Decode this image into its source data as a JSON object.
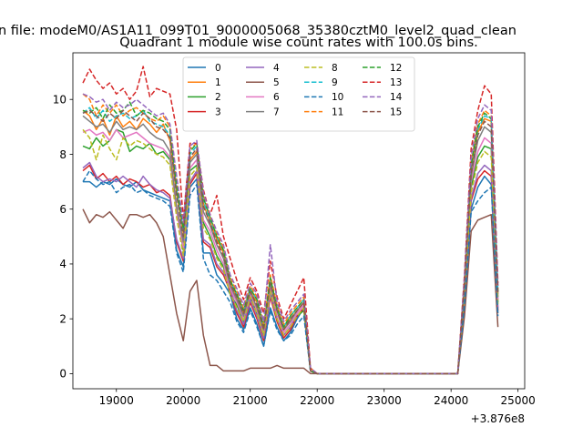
{
  "header": {
    "suptitle": "n file: modeM0/AS1A11_099T01_9000005068_35380cztM0_level2_quad_clean"
  },
  "chart_data": {
    "type": "line",
    "title": "Quadrant 1 module wise count rates with 100.0s bins.",
    "xlabel": "",
    "ylabel": "",
    "x_offset_label": "+3.876e8",
    "xlim": [
      18350,
      25100
    ],
    "ylim": [
      -0.55,
      11.7
    ],
    "xticks": [
      19000,
      20000,
      21000,
      22000,
      23000,
      24000,
      25000
    ],
    "yticks": [
      0,
      2,
      4,
      6,
      8,
      10
    ],
    "x": [
      18500,
      18600,
      18700,
      18800,
      18900,
      19000,
      19100,
      19200,
      19300,
      19400,
      19500,
      19600,
      19700,
      19800,
      19900,
      20000,
      20100,
      20200,
      20300,
      20400,
      20500,
      20600,
      20700,
      20800,
      20900,
      21000,
      21100,
      21200,
      21300,
      21400,
      21500,
      21600,
      21700,
      21800,
      21900,
      22000,
      22100,
      22200,
      22300,
      22400,
      22500,
      22600,
      22700,
      22800,
      22900,
      23000,
      23100,
      23200,
      23300,
      23400,
      23500,
      23600,
      23700,
      23800,
      23900,
      24000,
      24100,
      24200,
      24300,
      24400,
      24500,
      24600,
      24700
    ],
    "legend": {
      "location": "upper-center",
      "columns": 4
    },
    "series": [
      {
        "name": "0",
        "color": "#1f77b4",
        "dash": "solid",
        "values": [
          7.0,
          7.0,
          6.8,
          7.0,
          6.9,
          7.1,
          6.9,
          6.8,
          7.0,
          6.7,
          6.6,
          6.5,
          6.4,
          6.3,
          4.5,
          3.9,
          6.8,
          7.1,
          4.4,
          4.4,
          3.6,
          3.3,
          2.9,
          2.0,
          1.6,
          2.4,
          1.8,
          1.0,
          2.4,
          1.7,
          1.2,
          1.5,
          2.0,
          2.4,
          0.1,
          0.0,
          0.0,
          0.0,
          0.0,
          0.0,
          0.0,
          0.0,
          0.0,
          0.0,
          0.0,
          0.0,
          0.0,
          0.0,
          0.0,
          0.0,
          0.0,
          0.0,
          0.0,
          0.0,
          0.0,
          0.0,
          0.0,
          2.6,
          6.0,
          6.8,
          7.2,
          6.9,
          2.2
        ]
      },
      {
        "name": "1",
        "color": "#ff7f0e",
        "dash": "solid",
        "values": [
          9.6,
          9.4,
          8.9,
          9.3,
          8.7,
          9.4,
          9.0,
          9.2,
          8.9,
          9.3,
          9.1,
          8.8,
          9.1,
          8.5,
          6.6,
          5.1,
          7.8,
          8.1,
          6.2,
          5.5,
          4.9,
          4.4,
          3.3,
          2.8,
          2.2,
          3.0,
          2.6,
          1.6,
          3.4,
          2.3,
          1.6,
          2.0,
          2.3,
          2.6,
          0.1,
          0.0,
          0.0,
          0.0,
          0.0,
          0.0,
          0.0,
          0.0,
          0.0,
          0.0,
          0.0,
          0.0,
          0.0,
          0.0,
          0.0,
          0.0,
          0.0,
          0.0,
          0.0,
          0.0,
          0.0,
          0.0,
          0.0,
          3.2,
          7.4,
          8.8,
          9.3,
          9.2,
          2.9
        ]
      },
      {
        "name": "2",
        "color": "#2ca02c",
        "dash": "solid",
        "values": [
          8.3,
          8.2,
          8.6,
          8.3,
          8.5,
          8.9,
          8.8,
          8.1,
          8.3,
          8.2,
          8.4,
          8.0,
          8.1,
          7.8,
          6.0,
          4.5,
          7.4,
          7.6,
          5.5,
          5.0,
          4.3,
          3.9,
          2.9,
          2.5,
          1.9,
          2.8,
          2.2,
          1.4,
          3.1,
          2.0,
          1.4,
          1.7,
          2.1,
          2.3,
          0.1,
          0.0,
          0.0,
          0.0,
          0.0,
          0.0,
          0.0,
          0.0,
          0.0,
          0.0,
          0.0,
          0.0,
          0.0,
          0.0,
          0.0,
          0.0,
          0.0,
          0.0,
          0.0,
          0.0,
          0.0,
          0.0,
          0.0,
          3.0,
          6.8,
          7.9,
          8.3,
          8.2,
          2.6
        ]
      },
      {
        "name": "3",
        "color": "#d62728",
        "dash": "solid",
        "values": [
          7.4,
          7.6,
          7.1,
          7.3,
          7.0,
          7.2,
          6.9,
          7.1,
          7.0,
          6.8,
          6.9,
          6.6,
          6.7,
          6.5,
          4.8,
          4.1,
          6.9,
          7.3,
          4.8,
          4.6,
          3.9,
          3.6,
          3.0,
          2.2,
          1.7,
          2.6,
          2.0,
          1.2,
          2.8,
          1.9,
          1.3,
          1.6,
          2.1,
          2.4,
          0.1,
          0.0,
          0.0,
          0.0,
          0.0,
          0.0,
          0.0,
          0.0,
          0.0,
          0.0,
          0.0,
          0.0,
          0.0,
          0.0,
          0.0,
          0.0,
          0.0,
          0.0,
          0.0,
          0.0,
          0.0,
          0.0,
          0.0,
          2.7,
          6.3,
          7.1,
          7.4,
          7.2,
          2.3
        ]
      },
      {
        "name": "4",
        "color": "#9467bd",
        "dash": "solid",
        "values": [
          7.5,
          7.7,
          7.2,
          7.0,
          7.1,
          7.0,
          7.2,
          7.0,
          6.8,
          7.2,
          6.9,
          6.7,
          6.6,
          6.4,
          4.9,
          4.2,
          7.0,
          7.4,
          4.9,
          4.7,
          4.0,
          3.7,
          3.1,
          2.3,
          1.8,
          2.7,
          2.1,
          1.3,
          2.9,
          2.0,
          1.4,
          1.7,
          2.2,
          2.5,
          0.1,
          0.0,
          0.0,
          0.0,
          0.0,
          0.0,
          0.0,
          0.0,
          0.0,
          0.0,
          0.0,
          0.0,
          0.0,
          0.0,
          0.0,
          0.0,
          0.0,
          0.0,
          0.0,
          0.0,
          0.0,
          0.0,
          0.0,
          2.8,
          6.4,
          7.3,
          7.6,
          7.4,
          2.4
        ]
      },
      {
        "name": "5",
        "color": "#8c564b",
        "dash": "solid",
        "values": [
          6.0,
          5.5,
          5.8,
          5.7,
          5.9,
          5.6,
          5.3,
          5.8,
          5.8,
          5.7,
          5.8,
          5.5,
          5.0,
          3.6,
          2.2,
          1.2,
          3.0,
          3.4,
          1.4,
          0.3,
          0.3,
          0.1,
          0.1,
          0.1,
          0.1,
          0.2,
          0.2,
          0.2,
          0.2,
          0.3,
          0.2,
          0.2,
          0.2,
          0.2,
          0.0,
          0.0,
          0.0,
          0.0,
          0.0,
          0.0,
          0.0,
          0.0,
          0.0,
          0.0,
          0.0,
          0.0,
          0.0,
          0.0,
          0.0,
          0.0,
          0.0,
          0.0,
          0.0,
          0.0,
          0.0,
          0.0,
          0.0,
          2.1,
          5.2,
          5.6,
          5.7,
          5.8,
          1.7
        ]
      },
      {
        "name": "6",
        "color": "#e377c2",
        "dash": "solid",
        "values": [
          8.8,
          8.9,
          8.7,
          8.8,
          8.5,
          8.9,
          8.6,
          8.7,
          8.8,
          8.6,
          8.4,
          8.3,
          8.2,
          7.9,
          5.9,
          4.6,
          7.5,
          7.8,
          5.6,
          5.2,
          4.5,
          4.0,
          3.1,
          2.6,
          2.0,
          2.9,
          2.3,
          1.5,
          3.2,
          2.2,
          1.5,
          1.8,
          2.2,
          2.5,
          0.1,
          0.0,
          0.0,
          0.0,
          0.0,
          0.0,
          0.0,
          0.0,
          0.0,
          0.0,
          0.0,
          0.0,
          0.0,
          0.0,
          0.0,
          0.0,
          0.0,
          0.0,
          0.0,
          0.0,
          0.0,
          0.0,
          0.0,
          3.1,
          7.0,
          8.1,
          8.6,
          8.4,
          2.7
        ]
      },
      {
        "name": "7",
        "color": "#7f7f7f",
        "dash": "solid",
        "values": [
          9.4,
          9.2,
          9.0,
          9.1,
          8.8,
          9.2,
          8.9,
          9.0,
          8.9,
          9.1,
          8.8,
          8.6,
          8.5,
          8.1,
          6.1,
          4.8,
          7.7,
          8.0,
          5.9,
          5.4,
          4.7,
          4.2,
          3.2,
          2.7,
          2.1,
          3.0,
          2.4,
          1.6,
          3.3,
          2.3,
          1.6,
          1.9,
          2.3,
          2.6,
          0.1,
          0.0,
          0.0,
          0.0,
          0.0,
          0.0,
          0.0,
          0.0,
          0.0,
          0.0,
          0.0,
          0.0,
          0.0,
          0.0,
          0.0,
          0.0,
          0.0,
          0.0,
          0.0,
          0.0,
          0.0,
          0.0,
          0.0,
          3.2,
          7.2,
          8.5,
          9.0,
          8.8,
          2.8
        ]
      },
      {
        "name": "8",
        "color": "#bcbd22",
        "dash": "dashed",
        "values": [
          8.9,
          8.6,
          7.8,
          8.7,
          8.2,
          7.8,
          8.6,
          8.3,
          8.5,
          8.4,
          8.2,
          8.0,
          7.9,
          7.6,
          5.7,
          4.3,
          7.2,
          7.5,
          5.3,
          4.9,
          4.2,
          3.8,
          2.9,
          2.4,
          1.9,
          2.8,
          2.2,
          1.4,
          3.0,
          2.0,
          1.4,
          1.7,
          2.1,
          2.4,
          0.1,
          0.0,
          0.0,
          0.0,
          0.0,
          0.0,
          0.0,
          0.0,
          0.0,
          0.0,
          0.0,
          0.0,
          0.0,
          0.0,
          0.0,
          0.0,
          0.0,
          0.0,
          0.0,
          0.0,
          0.0,
          0.0,
          0.0,
          2.9,
          6.6,
          7.7,
          8.1,
          7.9,
          2.5
        ]
      },
      {
        "name": "9",
        "color": "#17becf",
        "dash": "dashed",
        "values": [
          9.5,
          9.7,
          9.3,
          9.6,
          9.2,
          9.4,
          9.5,
          9.3,
          9.4,
          9.6,
          9.2,
          9.1,
          9.0,
          8.7,
          6.7,
          5.2,
          8.0,
          8.3,
          6.3,
          5.6,
          5.0,
          4.5,
          3.4,
          2.9,
          2.3,
          3.1,
          2.7,
          1.7,
          3.5,
          2.4,
          1.7,
          2.1,
          2.4,
          2.7,
          0.1,
          0.0,
          0.0,
          0.0,
          0.0,
          0.0,
          0.0,
          0.0,
          0.0,
          0.0,
          0.0,
          0.0,
          0.0,
          0.0,
          0.0,
          0.0,
          0.0,
          0.0,
          0.0,
          0.0,
          0.0,
          0.0,
          0.0,
          3.3,
          7.5,
          8.9,
          9.4,
          9.3,
          3.0
        ]
      },
      {
        "name": "10",
        "color": "#1f77b4",
        "dash": "dashed",
        "values": [
          7.0,
          7.4,
          7.1,
          6.9,
          7.0,
          6.6,
          6.8,
          6.9,
          6.6,
          6.7,
          6.5,
          6.4,
          6.3,
          6.1,
          4.4,
          3.7,
          6.5,
          6.9,
          4.2,
          3.6,
          3.4,
          3.0,
          2.6,
          1.9,
          1.5,
          2.3,
          1.7,
          1.0,
          2.3,
          1.6,
          1.2,
          1.4,
          1.8,
          2.1,
          0.1,
          0.0,
          0.0,
          0.0,
          0.0,
          0.0,
          0.0,
          0.0,
          0.0,
          0.0,
          0.0,
          0.0,
          0.0,
          0.0,
          0.0,
          0.0,
          0.0,
          0.0,
          0.0,
          0.0,
          0.0,
          0.0,
          0.0,
          2.5,
          5.9,
          6.3,
          6.6,
          6.8,
          2.1
        ]
      },
      {
        "name": "11",
        "color": "#ff7f0e",
        "dash": "dashed",
        "values": [
          10.2,
          10.0,
          9.4,
          9.8,
          9.5,
          9.8,
          9.4,
          9.6,
          9.7,
          9.5,
          9.3,
          9.2,
          9.4,
          9.0,
          7.0,
          5.4,
          8.2,
          8.4,
          6.5,
          5.7,
          5.1,
          4.6,
          3.5,
          3.0,
          2.4,
          3.2,
          2.8,
          1.8,
          3.6,
          2.5,
          1.8,
          2.2,
          2.5,
          2.8,
          0.2,
          0.0,
          0.0,
          0.0,
          0.0,
          0.0,
          0.0,
          0.0,
          0.0,
          0.0,
          0.0,
          0.0,
          0.0,
          0.0,
          0.0,
          0.0,
          0.0,
          0.0,
          0.0,
          0.0,
          0.0,
          0.0,
          0.0,
          3.4,
          7.7,
          9.1,
          9.6,
          9.4,
          3.1
        ]
      },
      {
        "name": "12",
        "color": "#2ca02c",
        "dash": "dashed",
        "values": [
          9.6,
          9.5,
          9.7,
          9.3,
          9.8,
          9.5,
          9.6,
          9.9,
          9.4,
          9.6,
          9.5,
          9.3,
          9.2,
          8.9,
          6.8,
          5.3,
          8.1,
          8.4,
          6.4,
          5.7,
          5.0,
          4.5,
          3.4,
          2.9,
          2.3,
          3.1,
          2.7,
          1.7,
          3.5,
          2.4,
          1.7,
          2.1,
          2.4,
          2.7,
          0.1,
          0.0,
          0.0,
          0.0,
          0.0,
          0.0,
          0.0,
          0.0,
          0.0,
          0.0,
          0.0,
          0.0,
          0.0,
          0.0,
          0.0,
          0.0,
          0.0,
          0.0,
          0.0,
          0.0,
          0.0,
          0.0,
          0.0,
          3.3,
          7.6,
          9.0,
          9.5,
          9.3,
          3.0
        ]
      },
      {
        "name": "13",
        "color": "#d62728",
        "dash": "dashed",
        "values": [
          10.6,
          11.1,
          10.7,
          10.4,
          10.6,
          10.2,
          10.4,
          10.0,
          10.3,
          11.2,
          10.1,
          10.4,
          10.3,
          10.2,
          8.9,
          5.6,
          8.4,
          8.4,
          6.7,
          5.8,
          6.5,
          5.0,
          4.2,
          3.4,
          2.7,
          3.5,
          3.0,
          2.2,
          4.1,
          2.8,
          2.0,
          2.5,
          3.0,
          3.5,
          0.2,
          0.0,
          0.0,
          0.0,
          0.0,
          0.0,
          0.0,
          0.0,
          0.0,
          0.0,
          0.0,
          0.0,
          0.0,
          0.0,
          0.0,
          0.0,
          0.0,
          0.0,
          0.0,
          0.0,
          0.0,
          0.0,
          0.0,
          3.6,
          8.2,
          9.6,
          10.5,
          10.2,
          3.3
        ]
      },
      {
        "name": "14",
        "color": "#9467bd",
        "dash": "dashed",
        "values": [
          10.2,
          10.1,
          9.9,
          10.0,
          9.6,
          9.9,
          9.7,
          9.8,
          10.0,
          9.8,
          9.6,
          9.4,
          9.5,
          9.1,
          7.2,
          5.5,
          8.3,
          8.5,
          6.6,
          5.8,
          5.2,
          4.7,
          3.6,
          3.1,
          2.5,
          3.3,
          2.9,
          1.9,
          4.7,
          2.6,
          1.9,
          2.3,
          2.6,
          2.9,
          0.2,
          0.0,
          0.0,
          0.0,
          0.0,
          0.0,
          0.0,
          0.0,
          0.0,
          0.0,
          0.0,
          0.0,
          0.0,
          0.0,
          0.0,
          0.0,
          0.0,
          0.0,
          0.0,
          0.0,
          0.0,
          0.0,
          0.0,
          3.5,
          7.9,
          9.3,
          9.8,
          9.6,
          3.2
        ]
      },
      {
        "name": "15",
        "color": "#8c564b",
        "dash": "dashed",
        "values": [
          9.5,
          9.6,
          9.4,
          9.2,
          9.5,
          9.3,
          9.6,
          9.4,
          9.2,
          9.5,
          9.3,
          9.0,
          8.9,
          8.6,
          6.5,
          5.0,
          7.9,
          8.2,
          6.1,
          5.5,
          4.8,
          4.3,
          3.3,
          2.8,
          2.2,
          3.0,
          2.5,
          1.6,
          3.3,
          2.3,
          1.6,
          2.0,
          2.3,
          2.6,
          0.1,
          0.0,
          0.0,
          0.0,
          0.0,
          0.0,
          0.0,
          0.0,
          0.0,
          0.0,
          0.0,
          0.0,
          0.0,
          0.0,
          0.0,
          0.0,
          0.0,
          0.0,
          0.0,
          0.0,
          0.0,
          0.0,
          0.0,
          3.2,
          7.3,
          8.7,
          9.2,
          9.0,
          2.9
        ]
      }
    ]
  }
}
